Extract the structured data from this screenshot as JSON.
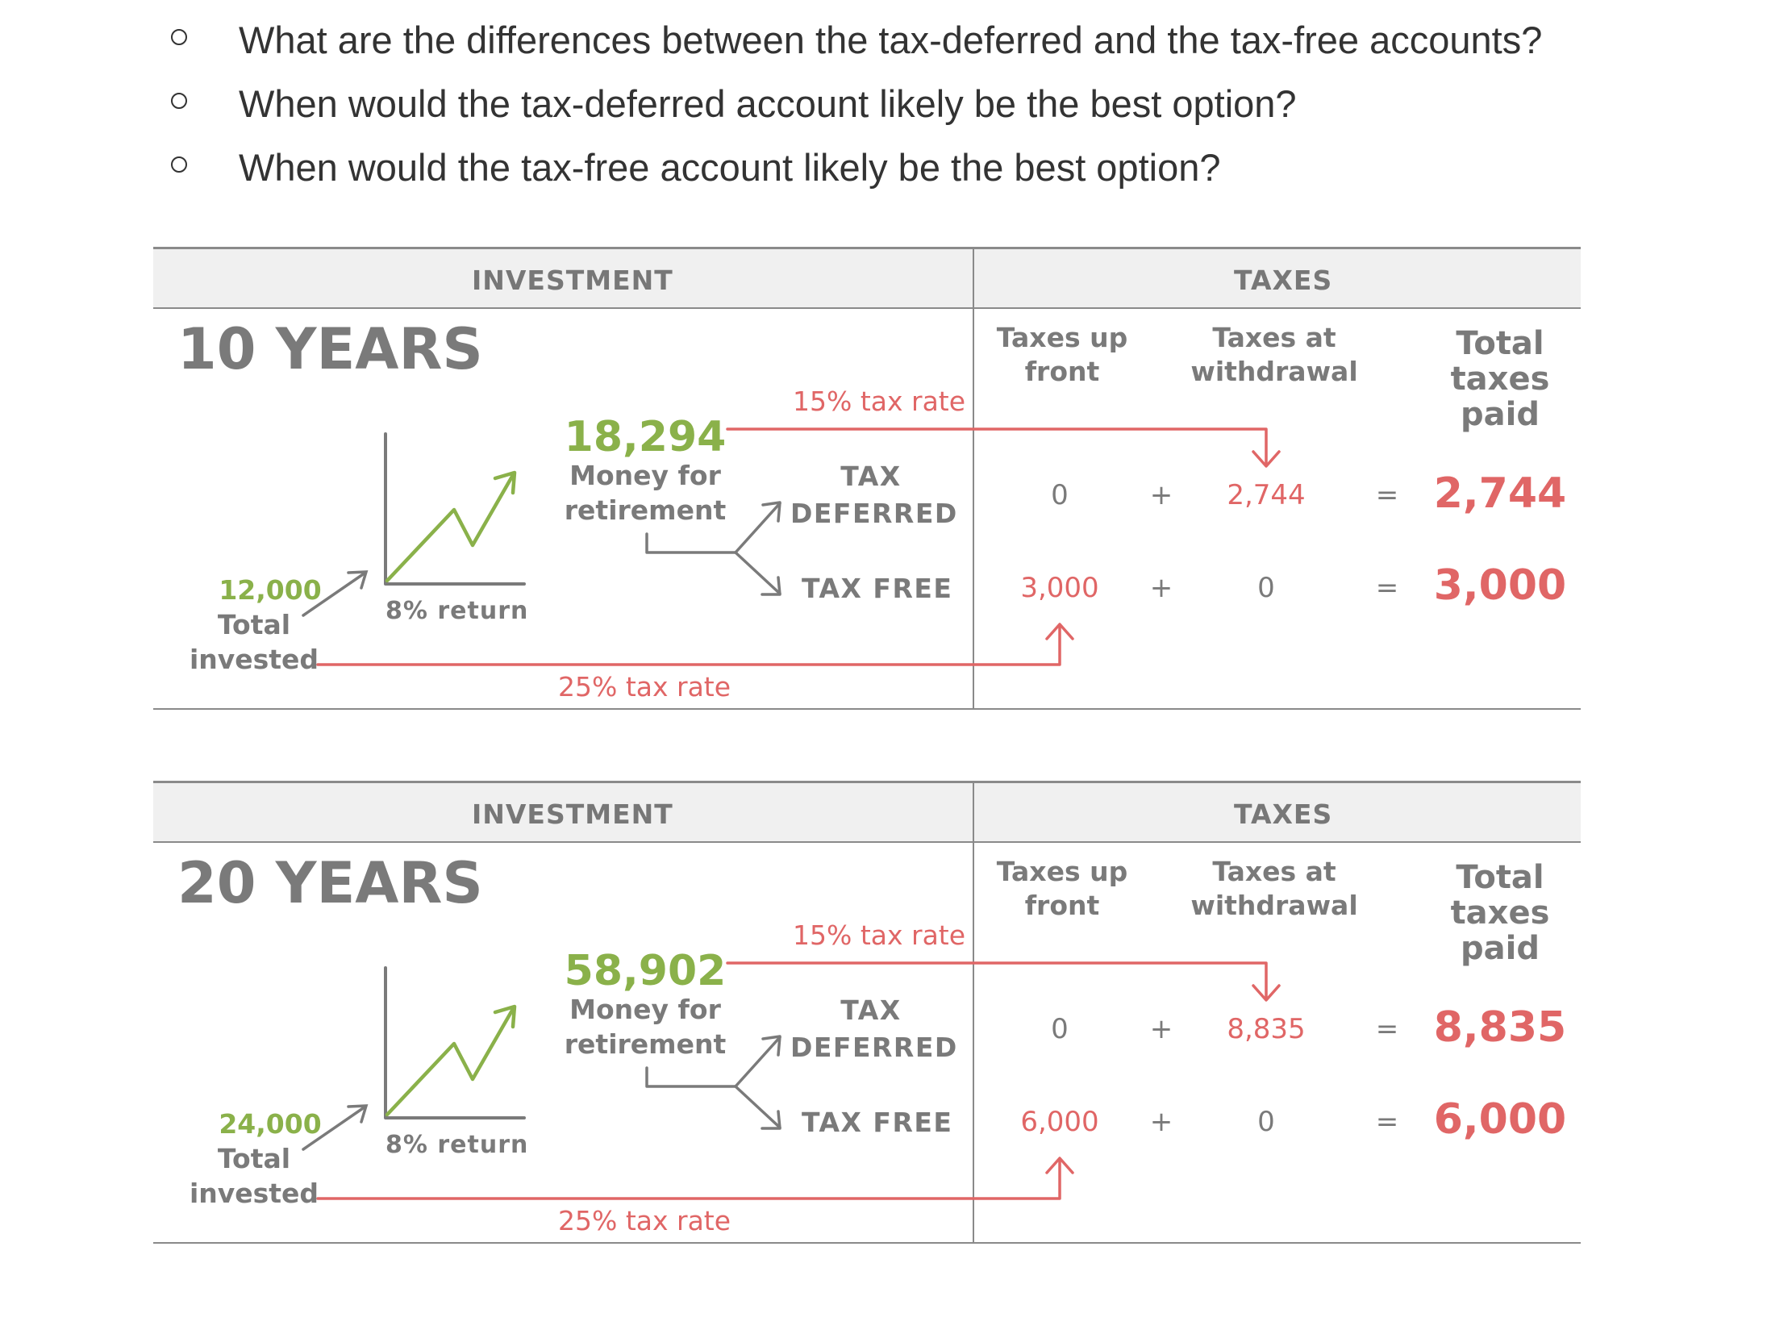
{
  "questions": [
    "What are the differences between the tax-deferred and the tax-free accounts?",
    "When would the tax-deferred account likely be the best option?",
    "When would the tax-free account likely be the best option?"
  ],
  "panels": [
    {
      "header_investment": "INVESTMENT",
      "header_taxes": "TAXES",
      "years": "10 YEARS",
      "col_upfront_1": "Taxes up",
      "col_upfront_2": "front",
      "col_withdrawal_1": "Taxes at",
      "col_withdrawal_2": "withdrawal",
      "col_total_1": "Total",
      "col_total_2": "taxes",
      "col_total_3": "paid",
      "invested_value": "12,000",
      "invested_label_1": "Total",
      "invested_label_2": "invested",
      "return_label": "8% return",
      "money_value": "18,294",
      "money_label_1": "Money for",
      "money_label_2": "retirement",
      "deferred_label_1": "TAX",
      "deferred_label_2": "DEFERRED",
      "free_label": "TAX FREE",
      "rate_withdrawal": "15% tax rate",
      "rate_upfront": "25% tax rate",
      "deferred_row": {
        "upfront": "0",
        "plus": "+",
        "withdrawal": "2,744",
        "equals": "=",
        "total": "2,744"
      },
      "free_row": {
        "upfront": "3,000",
        "plus": "+",
        "withdrawal": "0",
        "equals": "=",
        "total": "3,000"
      }
    },
    {
      "header_investment": "INVESTMENT",
      "header_taxes": "TAXES",
      "years": "20 YEARS",
      "col_upfront_1": "Taxes up",
      "col_upfront_2": "front",
      "col_withdrawal_1": "Taxes at",
      "col_withdrawal_2": "withdrawal",
      "col_total_1": "Total",
      "col_total_2": "taxes",
      "col_total_3": "paid",
      "invested_value": "24,000",
      "invested_label_1": "Total",
      "invested_label_2": "invested",
      "return_label": "8% return",
      "money_value": "58,902",
      "money_label_1": "Money for",
      "money_label_2": "retirement",
      "deferred_label_1": "TAX",
      "deferred_label_2": "DEFERRED",
      "free_label": "TAX FREE",
      "rate_withdrawal": "15% tax rate",
      "rate_upfront": "25% tax rate",
      "deferred_row": {
        "upfront": "0",
        "plus": "+",
        "withdrawal": "8,835",
        "equals": "=",
        "total": "8,835"
      },
      "free_row": {
        "upfront": "6,000",
        "plus": "+",
        "withdrawal": "0",
        "equals": "=",
        "total": "6,000"
      }
    }
  ],
  "colors": {
    "green": "#8ab14a",
    "red": "#e06666",
    "gray": "#7a7a7a",
    "header_bg": "#f0f0f0"
  }
}
